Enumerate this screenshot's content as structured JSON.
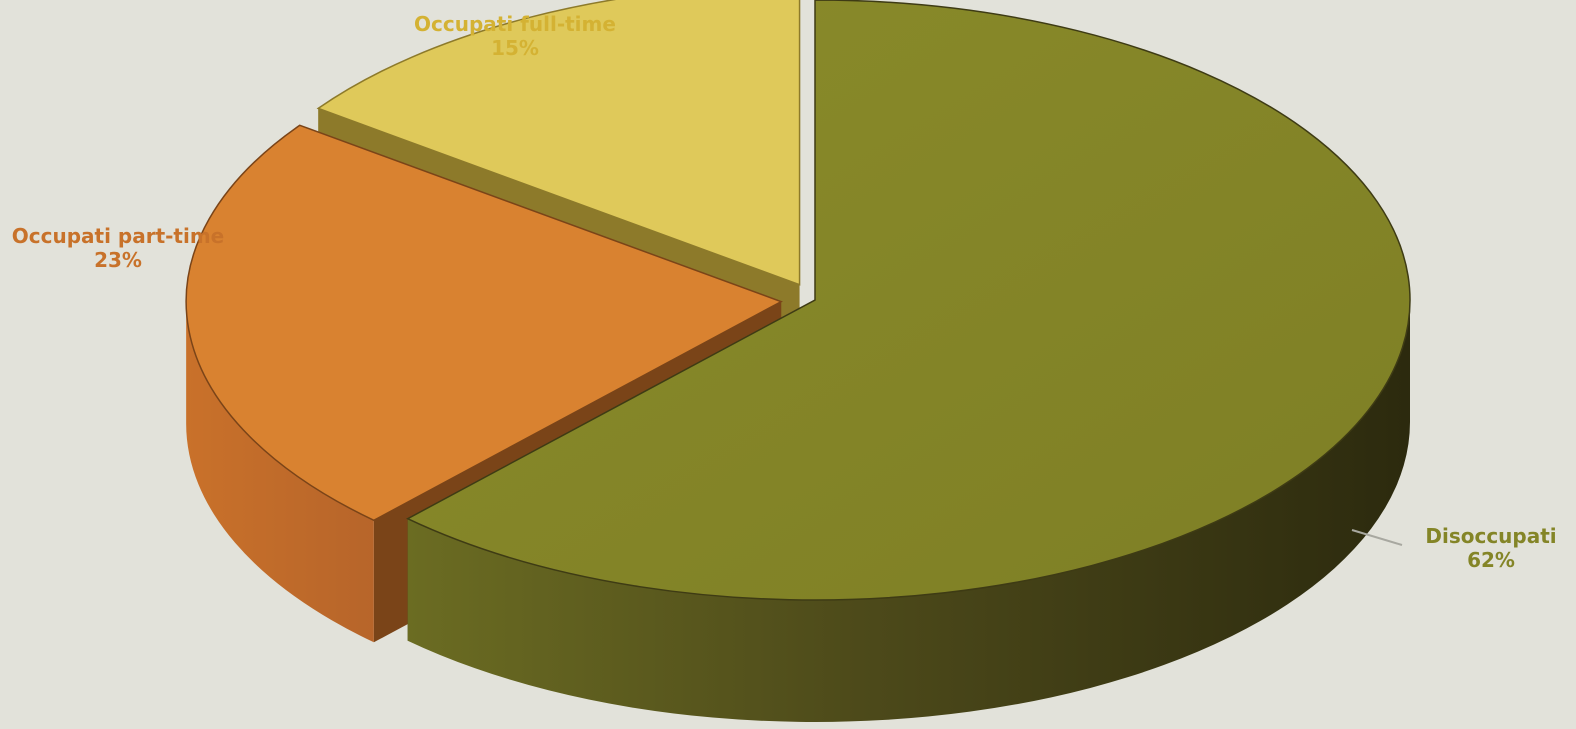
{
  "chart_data": {
    "type": "pie",
    "title": "",
    "categories": [
      "Disoccupati",
      "Occupati part-time",
      "Occupati full-time"
    ],
    "values": [
      62,
      23,
      15
    ],
    "labels": [
      {
        "name": "Disoccupati",
        "value_text": "62%"
      },
      {
        "name": "Occupati part-time",
        "value_text": "23%"
      },
      {
        "name": "Occupati full-time",
        "value_text": "15%"
      }
    ],
    "colors": [
      "#848527",
      "#d98230",
      "#dfc95a"
    ],
    "label_colors": [
      "#848527",
      "#c8722a",
      "#d4b233"
    ],
    "legend": "none"
  }
}
